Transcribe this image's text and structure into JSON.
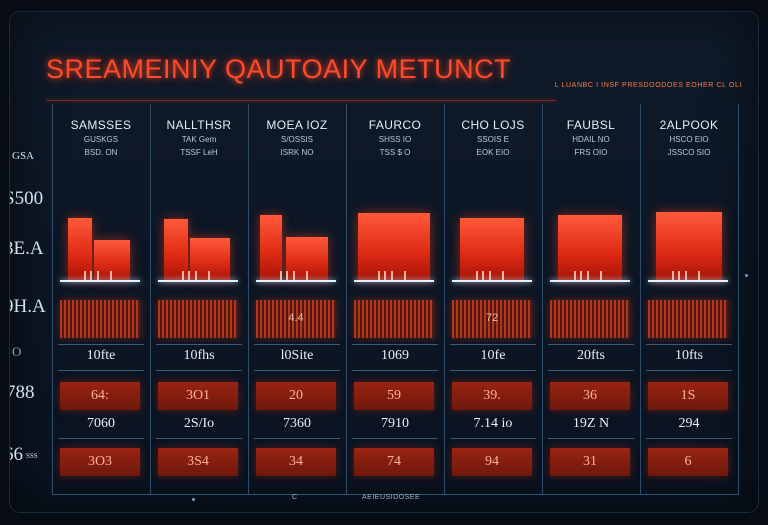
{
  "header": {
    "title": "SREAMEINIY QAUTOAIY METUNCT",
    "subtitle": "L LUANBC I INSF PRESDOODOES EOHER CL OLI"
  },
  "row_labels": [
    "GSA",
    "S500",
    "3E.A",
    "9H.A",
    "O",
    "788",
    "66"
  ],
  "row_label_small": "SSS",
  "columns": [
    {
      "name": "SAMSSES",
      "sub1": "GUSKGS",
      "sub2": "BSD. ON",
      "bars": [
        [
          0.1,
          0.3,
          0.82
        ],
        [
          0.42,
          0.45,
          0.52
        ]
      ],
      "mid_label": "",
      "value1": "10fte",
      "value2": "64:",
      "value3": "7060",
      "value4": "3O3"
    },
    {
      "name": "NALLTHSR",
      "sub1": "TAK Gem",
      "sub2": "TSSF LeH",
      "bars": [
        [
          0.08,
          0.3,
          0.8
        ],
        [
          0.4,
          0.5,
          0.55
        ]
      ],
      "mid_label": "",
      "value1": "10fhs",
      "value2": "3O1",
      "value3": "2S/Io",
      "value4": "3S4"
    },
    {
      "name": "MOEA IOZ",
      "sub1": "S/OSSIS",
      "sub2": "ISRK NO",
      "bars": [
        [
          0.05,
          0.28,
          0.85
        ],
        [
          0.38,
          0.52,
          0.56
        ]
      ],
      "mid_label": "4.4",
      "value1": "l0Site",
      "value2": "20",
      "value3": "7360",
      "value4": "34"
    },
    {
      "name": "FAURCO",
      "sub1": "SHSS IO",
      "sub2": "TSS $ O",
      "bars": [
        [
          0.05,
          0.9,
          0.88
        ]
      ],
      "mid_label": "",
      "value1": "1069",
      "value2": "59",
      "value3": "7910",
      "value4": "74"
    },
    {
      "name": "CHO LOJS",
      "sub1": "SSOIS E",
      "sub2": "EOK EIO",
      "bars": [
        [
          0.1,
          0.8,
          0.82
        ]
      ],
      "mid_label": "72",
      "value1": "10fe",
      "value2": "39.",
      "value3": "7.14 io",
      "value4": "94"
    },
    {
      "name": "FAUBSL",
      "sub1": "HDAIL NO",
      "sub2": "FRS OIO",
      "bars": [
        [
          0.1,
          0.8,
          0.85
        ]
      ],
      "mid_label": "",
      "value1": "20fts",
      "value2": "36",
      "value3": "19Z N",
      "value4": "31"
    },
    {
      "name": "2ALPOOK",
      "sub1": "HSCO EIO",
      "sub2": "JSSCO SIO",
      "bars": [
        [
          0.1,
          0.82,
          0.9
        ]
      ],
      "mid_label": "",
      "value1": "10fts",
      "value2": "1S",
      "value3": "294",
      "value4": "6"
    }
  ],
  "footer": {
    "label": "AEIEUSIDOSEE",
    "mark": "C"
  },
  "colors": {
    "background": "#0c1624",
    "accent_red": "#ff4a2a",
    "grid_line": "#2f4c69",
    "text": "#e6f0f8",
    "baseline": "#dff2ff"
  }
}
